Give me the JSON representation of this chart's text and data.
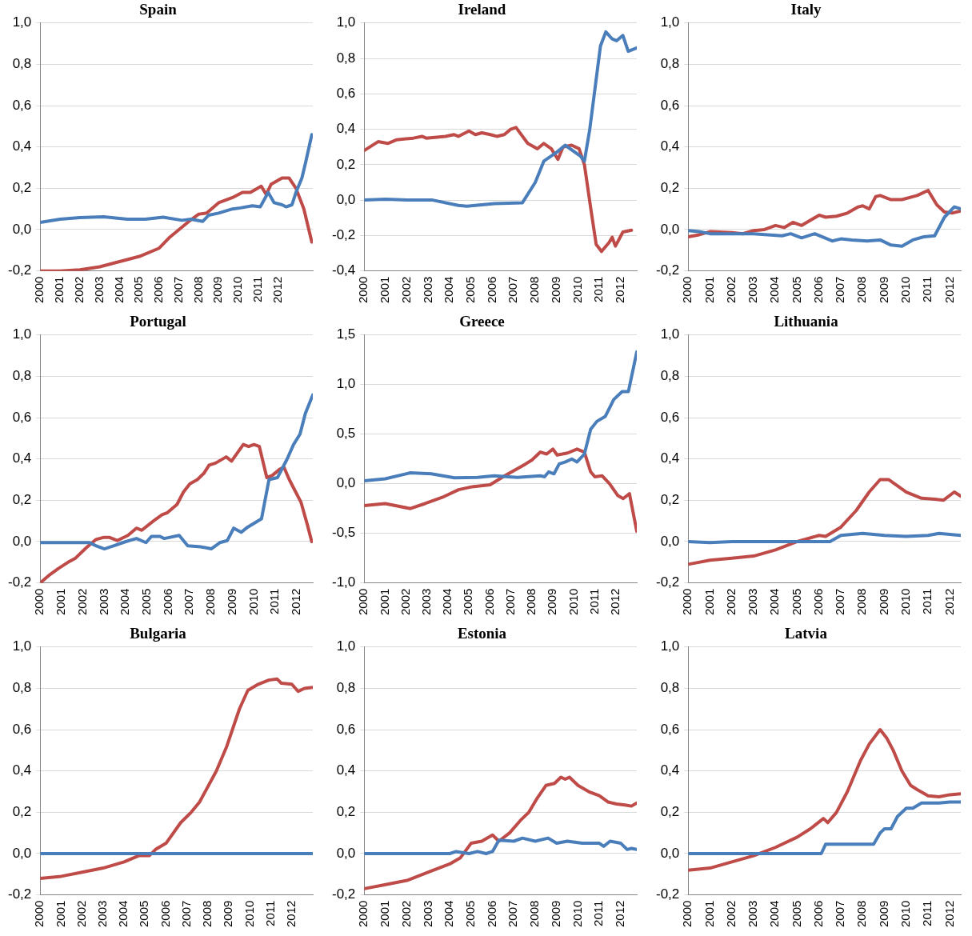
{
  "chart_data": [
    {
      "type": "line",
      "title": "Spain",
      "xlim": [
        2000,
        2013.75
      ],
      "xticks": [
        2000,
        2001,
        2002,
        2003,
        2004,
        2005,
        2006,
        2007,
        2008,
        2009,
        2010,
        2011,
        2012
      ],
      "ylim": [
        -0.2,
        1.0
      ],
      "yticks": [
        {
          "value": -0.2,
          "label": "-0,2"
        },
        {
          "value": 0,
          "label": "0,0"
        },
        {
          "value": 0.2,
          "label": "0,2"
        },
        {
          "value": 0.4,
          "label": "0,4"
        },
        {
          "value": 0.6,
          "label": "0,6"
        },
        {
          "value": 0.8,
          "label": "0,8"
        },
        {
          "value": 1.0,
          "label": "1,0"
        }
      ],
      "grid": "y",
      "series": [
        {
          "color": "#4a7ebb",
          "x": [
            2000,
            2001,
            2002,
            2003.2,
            2004.4,
            2005.3,
            2006.2,
            2007.15,
            2007.6,
            2008.2,
            2008.5,
            2009,
            2009.7,
            2010.1,
            2010.7,
            2011.1,
            2011.5,
            2011.8,
            2012.2,
            2012.4,
            2012.7,
            2012.9,
            2013.2,
            2013.4,
            2013.7
          ],
          "values": [
            0.035,
            0.05,
            0.058,
            0.062,
            0.05,
            0.05,
            0.06,
            0.045,
            0.05,
            0.04,
            0.07,
            0.08,
            0.1,
            0.105,
            0.115,
            0.11,
            0.18,
            0.13,
            0.12,
            0.11,
            0.12,
            0.18,
            0.25,
            0.33,
            0.46
          ]
        },
        {
          "color": "#be4b48",
          "x": [
            2000,
            2001,
            2002,
            2003,
            2004,
            2005,
            2006,
            2006.5,
            2007,
            2007.5,
            2008,
            2008.4,
            2009,
            2009.7,
            2010.2,
            2010.6,
            2011.15,
            2011.4,
            2011.65,
            2012.2,
            2012.55,
            2012.9,
            2013.3,
            2013.7
          ],
          "values": [
            -0.2,
            -0.2,
            -0.195,
            -0.18,
            -0.155,
            -0.13,
            -0.09,
            -0.04,
            0.0,
            0.04,
            0.075,
            0.08,
            0.13,
            0.155,
            0.18,
            0.18,
            0.21,
            0.17,
            0.22,
            0.25,
            0.25,
            0.2,
            0.1,
            -0.06
          ]
        }
      ]
    },
    {
      "type": "line",
      "title": "Ireland",
      "xlim": [
        2000,
        2012.75
      ],
      "xticks": [
        2000,
        2001,
        2002,
        2003,
        2004,
        2005,
        2006,
        2007,
        2008,
        2009,
        2010,
        2011,
        2012
      ],
      "ylim": [
        -0.4,
        1.0
      ],
      "yticks": [
        {
          "value": -0.4,
          "label": "-0,4"
        },
        {
          "value": -0.2,
          "label": "-0,2"
        },
        {
          "value": 0,
          "label": "0,0"
        },
        {
          "value": 0.2,
          "label": "0,2"
        },
        {
          "value": 0.4,
          "label": "0,4"
        },
        {
          "value": 0.6,
          "label": "0,6"
        },
        {
          "value": 0.8,
          "label": "0,8"
        },
        {
          "value": 1.0,
          "label": "1,0"
        }
      ],
      "grid": "y",
      "series": [
        {
          "color": "#4a7ebb",
          "x": [
            2000,
            2001,
            2002,
            2003.2,
            2004.4,
            2004.8,
            2006.1,
            2007.4,
            2008,
            2008.4,
            2009,
            2009.4,
            2010.1,
            2010.3,
            2010.55,
            2011.05,
            2011.3,
            2011.6,
            2011.8,
            2012.1,
            2012.35,
            2012.75
          ],
          "values": [
            0.0,
            0.005,
            0.0,
            0.0,
            -0.03,
            -0.035,
            -0.02,
            -0.015,
            0.1,
            0.22,
            0.27,
            0.31,
            0.25,
            0.22,
            0.4,
            0.87,
            0.95,
            0.91,
            0.9,
            0.93,
            0.84,
            0.86
          ]
        },
        {
          "color": "#be4b48",
          "x": [
            2000,
            2000.65,
            2001.1,
            2001.5,
            2002.3,
            2002.7,
            2002.9,
            2003.8,
            2004.2,
            2004.4,
            2004.9,
            2005.2,
            2005.5,
            2005.9,
            2006.2,
            2006.55,
            2006.85,
            2007.1,
            2007.65,
            2008.1,
            2008.4,
            2008.75,
            2009.06,
            2009.3,
            2009.7,
            2010.05,
            2010.3,
            2010.6,
            2010.85,
            2011.1,
            2011.45,
            2011.6,
            2011.75,
            2012.1,
            2012.5
          ],
          "values": [
            0.28,
            0.33,
            0.32,
            0.34,
            0.35,
            0.36,
            0.35,
            0.36,
            0.37,
            0.36,
            0.39,
            0.37,
            0.38,
            0.37,
            0.36,
            0.37,
            0.4,
            0.41,
            0.32,
            0.29,
            0.32,
            0.29,
            0.23,
            0.3,
            0.31,
            0.29,
            0.2,
            -0.05,
            -0.25,
            -0.29,
            -0.24,
            -0.21,
            -0.26,
            -0.18,
            -0.17
          ]
        }
      ]
    },
    {
      "type": "line",
      "title": "Italy",
      "xlim": [
        2000,
        2012.5
      ],
      "xticks": [
        2000,
        2001,
        2002,
        2003,
        2004,
        2005,
        2006,
        2007,
        2008,
        2009,
        2010,
        2011,
        2012
      ],
      "ylim": [
        -0.2,
        1.0
      ],
      "yticks": [
        {
          "value": -0.2,
          "label": "-0,2"
        },
        {
          "value": 0,
          "label": "0,0"
        },
        {
          "value": 0.2,
          "label": "0,2"
        },
        {
          "value": 0.4,
          "label": "0,4"
        },
        {
          "value": 0.6,
          "label": "0,6"
        },
        {
          "value": 0.8,
          "label": "0,8"
        },
        {
          "value": 1.0,
          "label": "1,0"
        }
      ],
      "grid": "y",
      "series": [
        {
          "color": "#4a7ebb",
          "x": [
            2000,
            2000.5,
            2001,
            2003,
            2004.3,
            2004.7,
            2005.2,
            2005.8,
            2006.6,
            2007,
            2007.5,
            2008.2,
            2008.8,
            2009.3,
            2009.8,
            2010.3,
            2010.8,
            2011.3,
            2011.75,
            2012.2,
            2012.5
          ],
          "values": [
            -0.005,
            -0.01,
            -0.02,
            -0.02,
            -0.03,
            -0.02,
            -0.04,
            -0.02,
            -0.055,
            -0.045,
            -0.05,
            -0.055,
            -0.05,
            -0.075,
            -0.08,
            -0.05,
            -0.035,
            -0.03,
            0.06,
            0.11,
            0.1
          ]
        },
        {
          "color": "#be4b48",
          "x": [
            2000,
            2000.5,
            2001,
            2002,
            2002.5,
            2003,
            2003.5,
            2004,
            2004.4,
            2004.8,
            2005.2,
            2006,
            2006.3,
            2006.8,
            2007.3,
            2007.8,
            2008,
            2008.3,
            2008.6,
            2008.8,
            2009.3,
            2009.8,
            2010.5,
            2011,
            2011.4,
            2011.75,
            2012.1,
            2012.5
          ],
          "values": [
            -0.035,
            -0.025,
            -0.01,
            -0.015,
            -0.02,
            -0.005,
            0.0,
            0.02,
            0.01,
            0.035,
            0.02,
            0.07,
            0.06,
            0.065,
            0.08,
            0.11,
            0.115,
            0.1,
            0.16,
            0.165,
            0.145,
            0.145,
            0.165,
            0.19,
            0.12,
            0.085,
            0.08,
            0.09
          ]
        }
      ]
    },
    {
      "type": "line",
      "title": "Portugal",
      "xlim": [
        2000,
        2012.75
      ],
      "xticks": [
        2000,
        2001,
        2002,
        2003,
        2004,
        2005,
        2006,
        2007,
        2008,
        2009,
        2010,
        2011,
        2012
      ],
      "ylim": [
        -0.2,
        1.0
      ],
      "yticks": [
        {
          "value": -0.2,
          "label": "-0,2"
        },
        {
          "value": 0,
          "label": "0,0"
        },
        {
          "value": 0.2,
          "label": "0,2"
        },
        {
          "value": 0.4,
          "label": "0,4"
        },
        {
          "value": 0.6,
          "label": "0,6"
        },
        {
          "value": 0.8,
          "label": "0,8"
        },
        {
          "value": 1.0,
          "label": "1,0"
        }
      ],
      "grid": "y",
      "series": [
        {
          "color": "#4a7ebb",
          "x": [
            2000,
            2002.3,
            2002.6,
            2003,
            2003.45,
            2004,
            2004.5,
            2004.95,
            2005.2,
            2005.6,
            2005.8,
            2006.5,
            2006.9,
            2007.5,
            2008,
            2008.4,
            2008.75,
            2009.05,
            2009.4,
            2009.7,
            2010.35,
            2010.7,
            2011.1,
            2011.55,
            2011.85,
            2012.15,
            2012.4,
            2012.75
          ],
          "values": [
            -0.005,
            -0.005,
            -0.02,
            -0.035,
            -0.02,
            0.0,
            0.015,
            -0.005,
            0.025,
            0.025,
            0.015,
            0.03,
            -0.02,
            -0.025,
            -0.035,
            -0.005,
            0.005,
            0.065,
            0.045,
            0.07,
            0.11,
            0.3,
            0.31,
            0.4,
            0.47,
            0.52,
            0.62,
            0.71
          ]
        },
        {
          "color": "#be4b48",
          "x": [
            2000,
            2000.45,
            2000.85,
            2001.3,
            2001.65,
            2002.15,
            2002.6,
            2002.95,
            2003.25,
            2003.6,
            2004.1,
            2004.5,
            2004.75,
            2005.3,
            2005.7,
            2005.95,
            2006.4,
            2006.7,
            2007,
            2007.35,
            2007.65,
            2007.9,
            2008.2,
            2008.7,
            2008.95,
            2009.5,
            2009.75,
            2010,
            2010.25,
            2010.6,
            2010.85,
            2011.2,
            2011.4,
            2011.65,
            2011.95,
            2012.2,
            2012.5,
            2012.7
          ],
          "values": [
            -0.2,
            -0.16,
            -0.13,
            -0.1,
            -0.08,
            -0.03,
            0.01,
            0.02,
            0.02,
            0.005,
            0.03,
            0.065,
            0.055,
            0.1,
            0.13,
            0.14,
            0.18,
            0.24,
            0.28,
            0.3,
            0.33,
            0.37,
            0.38,
            0.41,
            0.39,
            0.47,
            0.46,
            0.47,
            0.46,
            0.31,
            0.32,
            0.35,
            0.36,
            0.3,
            0.24,
            0.19,
            0.08,
            0.0
          ]
        }
      ]
    },
    {
      "type": "line",
      "title": "Greece",
      "xlim": [
        2000,
        2013
      ],
      "xticks": [
        2000,
        2001,
        2002,
        2003,
        2004,
        2005,
        2006,
        2007,
        2008,
        2009,
        2010,
        2011,
        2012
      ],
      "ylim": [
        -1.0,
        1.5
      ],
      "yticks": [
        {
          "value": -1.0,
          "label": "-1,0"
        },
        {
          "value": -0.5,
          "label": "-0,5"
        },
        {
          "value": 0,
          "label": "0,0"
        },
        {
          "value": 0.5,
          "label": "0,5"
        },
        {
          "value": 1.0,
          "label": "1,0"
        },
        {
          "value": 1.5,
          "label": "1,5"
        }
      ],
      "grid": "y",
      "series": [
        {
          "color": "#4a7ebb",
          "x": [
            2000,
            2001,
            2002.2,
            2003.2,
            2004.3,
            2005.4,
            2006.2,
            2007.3,
            2008.4,
            2008.6,
            2008.8,
            2009.05,
            2009.3,
            2009.6,
            2009.9,
            2010.15,
            2010.5,
            2010.8,
            2011.1,
            2011.5,
            2011.9,
            2012.3,
            2012.6,
            2013
          ],
          "values": [
            0.03,
            0.05,
            0.11,
            0.1,
            0.06,
            0.065,
            0.08,
            0.065,
            0.08,
            0.07,
            0.12,
            0.1,
            0.2,
            0.22,
            0.25,
            0.22,
            0.3,
            0.55,
            0.63,
            0.68,
            0.85,
            0.93,
            0.93,
            1.33
          ]
        },
        {
          "color": "#be4b48",
          "x": [
            2000,
            2001,
            2002.2,
            2002.9,
            2003.8,
            2004.5,
            2005.15,
            2006,
            2006.7,
            2007.7,
            2008,
            2008.4,
            2008.7,
            2009,
            2009.2,
            2009.7,
            2010.15,
            2010.5,
            2010.8,
            2011,
            2011.35,
            2011.7,
            2012.1,
            2012.35,
            2012.65,
            2013
          ],
          "values": [
            -0.22,
            -0.2,
            -0.25,
            -0.2,
            -0.13,
            -0.06,
            -0.03,
            -0.01,
            0.08,
            0.2,
            0.24,
            0.32,
            0.3,
            0.35,
            0.29,
            0.31,
            0.35,
            0.32,
            0.12,
            0.07,
            0.08,
            0.0,
            -0.12,
            -0.15,
            -0.1,
            -0.48
          ]
        }
      ]
    },
    {
      "type": "line",
      "title": "Lithuania",
      "xlim": [
        2000,
        2012.5
      ],
      "xticks": [
        2000,
        2001,
        2002,
        2003,
        2004,
        2005,
        2006,
        2007,
        2008,
        2009,
        2010,
        2011,
        2012
      ],
      "ylim": [
        -0.2,
        1.0
      ],
      "yticks": [
        {
          "value": -0.2,
          "label": "-0,2"
        },
        {
          "value": 0,
          "label": "0,0"
        },
        {
          "value": 0.2,
          "label": "0,2"
        },
        {
          "value": 0.4,
          "label": "0,4"
        },
        {
          "value": 0.6,
          "label": "0,6"
        },
        {
          "value": 0.8,
          "label": "0,8"
        },
        {
          "value": 1.0,
          "label": "1,0"
        }
      ],
      "grid": "y",
      "series": [
        {
          "color": "#4a7ebb",
          "x": [
            2000,
            2001,
            2002,
            2006.5,
            2007,
            2008,
            2009,
            2010,
            2011,
            2011.5,
            2012.5
          ],
          "values": [
            0.0,
            -0.005,
            0.0,
            0.0,
            0.03,
            0.04,
            0.03,
            0.025,
            0.03,
            0.04,
            0.03
          ]
        },
        {
          "color": "#be4b48",
          "x": [
            2000,
            2001,
            2002,
            2003,
            2004,
            2005,
            2006,
            2006.3,
            2007,
            2007.7,
            2008.3,
            2008.8,
            2009.2,
            2009.6,
            2010,
            2010.7,
            2011.3,
            2011.7,
            2012.2,
            2012.5
          ],
          "values": [
            -0.11,
            -0.09,
            -0.08,
            -0.07,
            -0.04,
            0.0,
            0.03,
            0.025,
            0.07,
            0.15,
            0.24,
            0.3,
            0.3,
            0.27,
            0.24,
            0.21,
            0.205,
            0.2,
            0.24,
            0.22
          ]
        }
      ]
    },
    {
      "type": "line",
      "title": "Bulgaria",
      "xlim": [
        2000,
        2013
      ],
      "xticks": [
        2000,
        2001,
        2002,
        2003,
        2004,
        2005,
        2006,
        2007,
        2008,
        2009,
        2010,
        2011,
        2012
      ],
      "ylim": [
        -0.2,
        1.0
      ],
      "yticks": [
        {
          "value": -0.2,
          "label": "-0,2"
        },
        {
          "value": 0,
          "label": "0,0"
        },
        {
          "value": 0.2,
          "label": "0,2"
        },
        {
          "value": 0.4,
          "label": "0,4"
        },
        {
          "value": 0.6,
          "label": "0,6"
        },
        {
          "value": 0.8,
          "label": "0,8"
        },
        {
          "value": 1.0,
          "label": "1,0"
        }
      ],
      "grid": "y",
      "series": [
        {
          "color": "#4a7ebb",
          "x": [
            2000,
            2013
          ],
          "values": [
            0.0,
            0.0
          ]
        },
        {
          "color": "#be4b48",
          "x": [
            2000,
            2001,
            2002,
            2003,
            2004,
            2004.7,
            2005.2,
            2005.5,
            2006,
            2006.7,
            2007.2,
            2007.6,
            2008.4,
            2008.9,
            2009.5,
            2009.9,
            2010.4,
            2010.9,
            2011.3,
            2011.5,
            2012,
            2012.3,
            2012.6,
            2013
          ],
          "values": [
            -0.12,
            -0.11,
            -0.09,
            -0.07,
            -0.04,
            -0.01,
            -0.01,
            0.02,
            0.05,
            0.15,
            0.2,
            0.25,
            0.4,
            0.52,
            0.7,
            0.79,
            0.82,
            0.84,
            0.845,
            0.825,
            0.82,
            0.785,
            0.8,
            0.805
          ]
        }
      ]
    },
    {
      "type": "line",
      "title": "Estonia",
      "xlim": [
        2000,
        2012.75
      ],
      "xticks": [
        2000,
        2001,
        2002,
        2003,
        2004,
        2005,
        2006,
        2007,
        2008,
        2009,
        2010,
        2011,
        2012
      ],
      "ylim": [
        -0.2,
        1.0
      ],
      "yticks": [
        {
          "value": -0.2,
          "label": "-0,2"
        },
        {
          "value": 0,
          "label": "0,0"
        },
        {
          "value": 0.2,
          "label": "0,2"
        },
        {
          "value": 0.4,
          "label": "0,4"
        },
        {
          "value": 0.6,
          "label": "0,6"
        },
        {
          "value": 0.8,
          "label": "0,8"
        },
        {
          "value": 1.0,
          "label": "1,0"
        }
      ],
      "grid": "y",
      "series": [
        {
          "color": "#4a7ebb",
          "x": [
            2000,
            2004,
            2004.3,
            2004.9,
            2005.3,
            2005.7,
            2006,
            2006.3,
            2007,
            2007.4,
            2008,
            2008.6,
            2009,
            2009.5,
            2010.2,
            2011,
            2011.2,
            2011.5,
            2012,
            2012.3,
            2012.5,
            2012.75
          ],
          "values": [
            0.0,
            0.0,
            0.01,
            0.0,
            0.01,
            0.0,
            0.01,
            0.065,
            0.06,
            0.075,
            0.06,
            0.075,
            0.05,
            0.06,
            0.05,
            0.05,
            0.035,
            0.06,
            0.05,
            0.02,
            0.025,
            0.02
          ]
        },
        {
          "color": "#be4b48",
          "x": [
            2000,
            2001,
            2002,
            2003,
            2004,
            2004.5,
            2005,
            2005.5,
            2006,
            2006.3,
            2006.8,
            2007.3,
            2007.7,
            2008.1,
            2008.5,
            2008.9,
            2009.2,
            2009.4,
            2009.6,
            2010,
            2010.5,
            2011,
            2011.4,
            2011.8,
            2012.2,
            2012.5,
            2012.75
          ],
          "values": [
            -0.17,
            -0.15,
            -0.13,
            -0.09,
            -0.05,
            -0.02,
            0.05,
            0.06,
            0.09,
            0.06,
            0.1,
            0.16,
            0.2,
            0.27,
            0.33,
            0.34,
            0.37,
            0.36,
            0.37,
            0.33,
            0.3,
            0.28,
            0.25,
            0.24,
            0.235,
            0.23,
            0.245
          ]
        }
      ]
    },
    {
      "type": "line",
      "title": "Latvia",
      "xlim": [
        2000,
        2012.5
      ],
      "xticks": [
        2000,
        2001,
        2002,
        2003,
        2004,
        2005,
        2006,
        2007,
        2008,
        2009,
        2010,
        2011,
        2012
      ],
      "ylim": [
        -0.2,
        1.0
      ],
      "yticks": [
        {
          "value": -0.2,
          "label": "-0,2"
        },
        {
          "value": 0,
          "label": "0,0"
        },
        {
          "value": 0.2,
          "label": "0,2"
        },
        {
          "value": 0.4,
          "label": "0,4"
        },
        {
          "value": 0.6,
          "label": "0,6"
        },
        {
          "value": 0.8,
          "label": "0,8"
        },
        {
          "value": 1.0,
          "label": "1,0"
        }
      ],
      "grid": "y",
      "series": [
        {
          "color": "#4a7ebb",
          "x": [
            2000,
            2006.1,
            2006.3,
            2008.5,
            2008.8,
            2009,
            2009.3,
            2009.6,
            2010,
            2010.3,
            2010.7,
            2011.5,
            2012,
            2012.5
          ],
          "values": [
            0.0,
            0.0,
            0.045,
            0.045,
            0.1,
            0.12,
            0.12,
            0.18,
            0.22,
            0.22,
            0.245,
            0.245,
            0.25,
            0.25
          ]
        },
        {
          "color": "#be4b48",
          "x": [
            2000,
            2001,
            2002,
            2003,
            2004,
            2005,
            2005.6,
            2006.2,
            2006.4,
            2006.8,
            2007.3,
            2007.9,
            2008.3,
            2008.8,
            2009.1,
            2009.4,
            2009.8,
            2010.2,
            2010.5,
            2011,
            2011.5,
            2012,
            2012.5
          ],
          "values": [
            -0.08,
            -0.07,
            -0.04,
            -0.01,
            0.03,
            0.08,
            0.12,
            0.17,
            0.15,
            0.2,
            0.3,
            0.45,
            0.53,
            0.6,
            0.56,
            0.5,
            0.4,
            0.33,
            0.31,
            0.28,
            0.275,
            0.285,
            0.29
          ]
        }
      ]
    }
  ]
}
